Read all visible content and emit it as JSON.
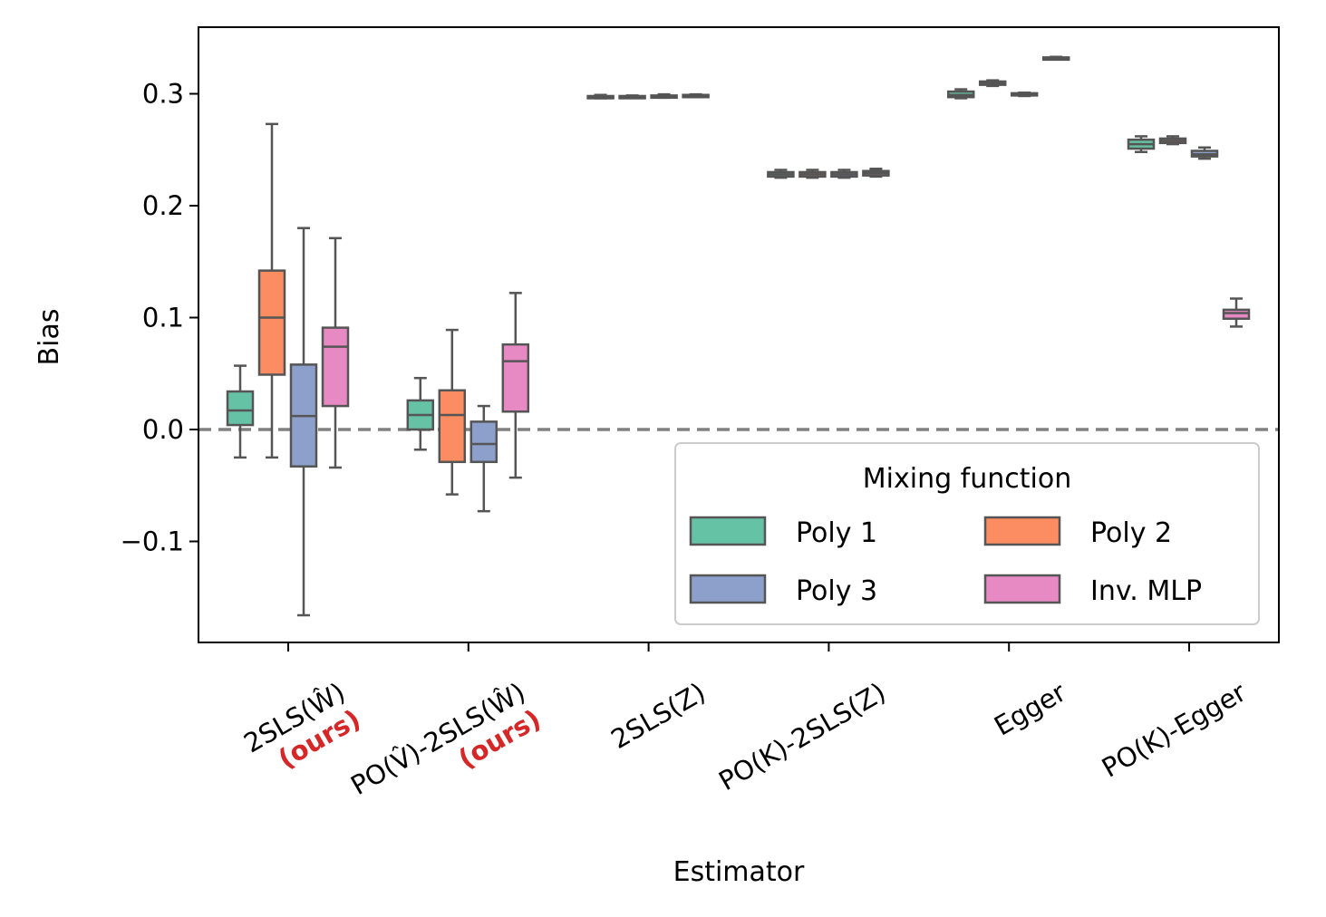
{
  "chart_data": {
    "type": "box",
    "xlabel": "Estimator",
    "ylabel": "Bias",
    "ylim": [
      -0.19,
      0.36
    ],
    "yticks": [
      -0.1,
      0.0,
      0.1,
      0.2,
      0.3
    ],
    "ytick_labels": [
      "−0.1",
      "0.0",
      "0.1",
      "0.2",
      "0.3"
    ],
    "grid": false,
    "reference_line": {
      "y": 0.0,
      "style": "dashed",
      "color": "#808080"
    },
    "categories": [
      {
        "label": "2SLS(Ŵ)",
        "note": "(ours)"
      },
      {
        "label": "PO(V̂)-2SLS(Ŵ)",
        "note": "(ours)"
      },
      {
        "label": "2SLS(Z)",
        "note": ""
      },
      {
        "label": "PO(K)-2SLS(Z)",
        "note": ""
      },
      {
        "label": "Egger",
        "note": ""
      },
      {
        "label": "PO(K)-Egger",
        "note": ""
      }
    ],
    "note_color": "#d62728",
    "legend": {
      "title": "Mixing function",
      "placement": "lower right",
      "columns": 2
    },
    "series": [
      {
        "name": "Poly 1",
        "color": "#66c2a5",
        "boxes": [
          {
            "whislo": -0.025,
            "q1": 0.004,
            "med": 0.017,
            "q3": 0.034,
            "whishi": 0.057
          },
          {
            "whislo": -0.018,
            "q1": 0.0,
            "med": 0.013,
            "q3": 0.026,
            "whishi": 0.046
          },
          {
            "whislo": 0.296,
            "q1": 0.297,
            "med": 0.2975,
            "q3": 0.298,
            "whishi": 0.299
          },
          {
            "whislo": 0.225,
            "q1": 0.226,
            "med": 0.228,
            "q3": 0.23,
            "whishi": 0.232
          },
          {
            "whislo": 0.296,
            "q1": 0.297,
            "med": 0.299,
            "q3": 0.302,
            "whishi": 0.304
          },
          {
            "whislo": 0.248,
            "q1": 0.251,
            "med": 0.255,
            "q3": 0.259,
            "whishi": 0.262
          }
        ]
      },
      {
        "name": "Poly 2",
        "color": "#fc8d62",
        "boxes": [
          {
            "whislo": -0.025,
            "q1": 0.049,
            "med": 0.1,
            "q3": 0.142,
            "whishi": 0.273
          },
          {
            "whislo": -0.058,
            "q1": -0.029,
            "med": 0.013,
            "q3": 0.035,
            "whishi": 0.089
          },
          {
            "whislo": 0.2965,
            "q1": 0.297,
            "med": 0.2975,
            "q3": 0.298,
            "whishi": 0.2985
          },
          {
            "whislo": 0.225,
            "q1": 0.226,
            "med": 0.228,
            "q3": 0.23,
            "whishi": 0.232
          },
          {
            "whislo": 0.307,
            "q1": 0.308,
            "med": 0.3095,
            "q3": 0.311,
            "whishi": 0.312
          },
          {
            "whislo": 0.255,
            "q1": 0.256,
            "med": 0.258,
            "q3": 0.26,
            "whishi": 0.262
          }
        ]
      },
      {
        "name": "Poly 3",
        "color": "#8da0cb",
        "boxes": [
          {
            "whislo": -0.166,
            "q1": -0.033,
            "med": 0.012,
            "q3": 0.058,
            "whishi": 0.18
          },
          {
            "whislo": -0.073,
            "q1": -0.029,
            "med": -0.013,
            "q3": 0.007,
            "whishi": 0.021
          },
          {
            "whislo": 0.2965,
            "q1": 0.2975,
            "med": 0.298,
            "q3": 0.2985,
            "whishi": 0.2995
          },
          {
            "whislo": 0.225,
            "q1": 0.226,
            "med": 0.228,
            "q3": 0.23,
            "whishi": 0.232
          },
          {
            "whislo": 0.298,
            "q1": 0.299,
            "med": 0.3,
            "q3": 0.3005,
            "whishi": 0.301
          },
          {
            "whislo": 0.242,
            "q1": 0.244,
            "med": 0.246,
            "q3": 0.249,
            "whishi": 0.252
          }
        ]
      },
      {
        "name": "Inv. MLP",
        "color": "#e78ac3",
        "boxes": [
          {
            "whislo": -0.034,
            "q1": 0.021,
            "med": 0.074,
            "q3": 0.091,
            "whishi": 0.171
          },
          {
            "whislo": -0.043,
            "q1": 0.016,
            "med": 0.061,
            "q3": 0.076,
            "whishi": 0.122
          },
          {
            "whislo": 0.2975,
            "q1": 0.298,
            "med": 0.2985,
            "q3": 0.299,
            "whishi": 0.2995
          },
          {
            "whislo": 0.226,
            "q1": 0.227,
            "med": 0.229,
            "q3": 0.231,
            "whishi": 0.233
          },
          {
            "whislo": 0.331,
            "q1": 0.3315,
            "med": 0.332,
            "q3": 0.3325,
            "whishi": 0.333
          },
          {
            "whislo": 0.092,
            "q1": 0.099,
            "med": 0.104,
            "q3": 0.107,
            "whishi": 0.117
          }
        ]
      }
    ]
  }
}
